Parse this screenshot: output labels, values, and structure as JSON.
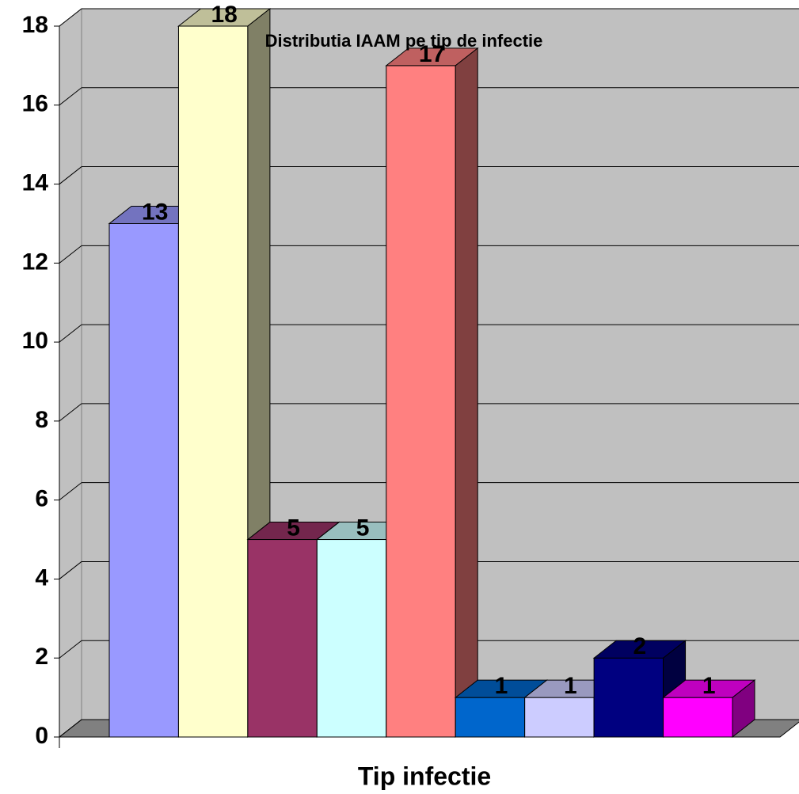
{
  "chart_data": {
    "type": "bar3d",
    "title": "Distributia IAAM pe tip de infectie",
    "x_label": "Tip infectie",
    "values": [
      13,
      18,
      5,
      5,
      17,
      1,
      1,
      2,
      1
    ],
    "colors": [
      "#9999ff",
      "#ffffcc",
      "#993366",
      "#ccffff",
      "#ff8080",
      "#0066cc",
      "#ccccff",
      "#000080",
      "#ff00ff"
    ],
    "ylim": [
      0,
      18
    ],
    "yticks": [
      0,
      2,
      4,
      6,
      8,
      10,
      12,
      14,
      16,
      18
    ],
    "grid": true
  }
}
